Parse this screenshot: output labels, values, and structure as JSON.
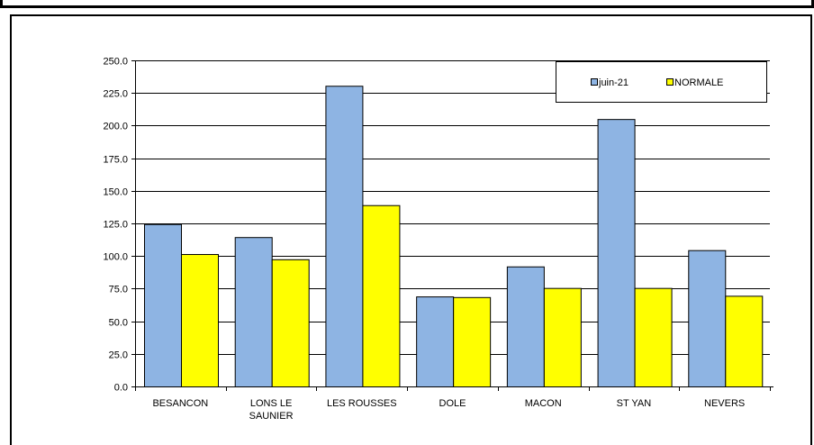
{
  "chart_data": {
    "type": "bar",
    "title": "",
    "xlabel": "",
    "ylabel": "",
    "categories": [
      [
        "BESANCON"
      ],
      [
        "LONS LE",
        "SAUNIER"
      ],
      [
        "LES ROUSSES"
      ],
      [
        "DOLE"
      ],
      [
        "MACON"
      ],
      [
        "ST YAN"
      ],
      [
        "NEVERS"
      ]
    ],
    "series": [
      {
        "name": "juin-21",
        "color": "#8eb4e3",
        "values": [
          124.5,
          114.5,
          230.5,
          69.0,
          92.0,
          205.0,
          104.5
        ]
      },
      {
        "name": "NORMALE",
        "color": "#ffff00",
        "values": [
          101.5,
          97.5,
          139.0,
          68.5,
          75.5,
          75.5,
          69.5
        ]
      }
    ],
    "ylim": [
      0,
      250
    ],
    "yticks": [
      "0.0",
      "25.0",
      "50.0",
      "75.0",
      "100.0",
      "125.0",
      "150.0",
      "175.0",
      "200.0",
      "225.0",
      "250.0"
    ],
    "grid": true,
    "legend_position": "top-right"
  }
}
